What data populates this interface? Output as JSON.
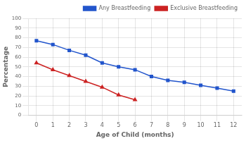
{
  "chart_data": {
    "type": "line",
    "x": [
      0,
      1,
      2,
      3,
      4,
      5,
      6,
      7,
      8,
      9,
      10,
      11,
      12
    ],
    "series": [
      {
        "name": "Any Breastfeeding",
        "color": "#2255CC",
        "marker": "square",
        "values": [
          77,
          73,
          67,
          62,
          54,
          50,
          47,
          40,
          36,
          34,
          31,
          28,
          25
        ]
      },
      {
        "name": "Exclusive Breastfeeding",
        "color": "#CC2222",
        "marker": "triangle",
        "values": [
          54,
          47,
          41,
          35,
          29,
          21,
          16,
          null,
          null,
          null,
          null,
          null,
          null
        ]
      }
    ],
    "xlabel": "Age of Child (months)",
    "ylabel": "Percentage",
    "xlim": [
      -0.5,
      12.5
    ],
    "ylim": [
      0,
      100
    ],
    "xticks": [
      0,
      1,
      2,
      3,
      4,
      5,
      6,
      7,
      8,
      9,
      10,
      11,
      12
    ],
    "yticks": [
      0,
      10,
      20,
      30,
      40,
      50,
      60,
      70,
      80,
      90,
      100
    ],
    "grid": true,
    "legend": "upper right"
  }
}
